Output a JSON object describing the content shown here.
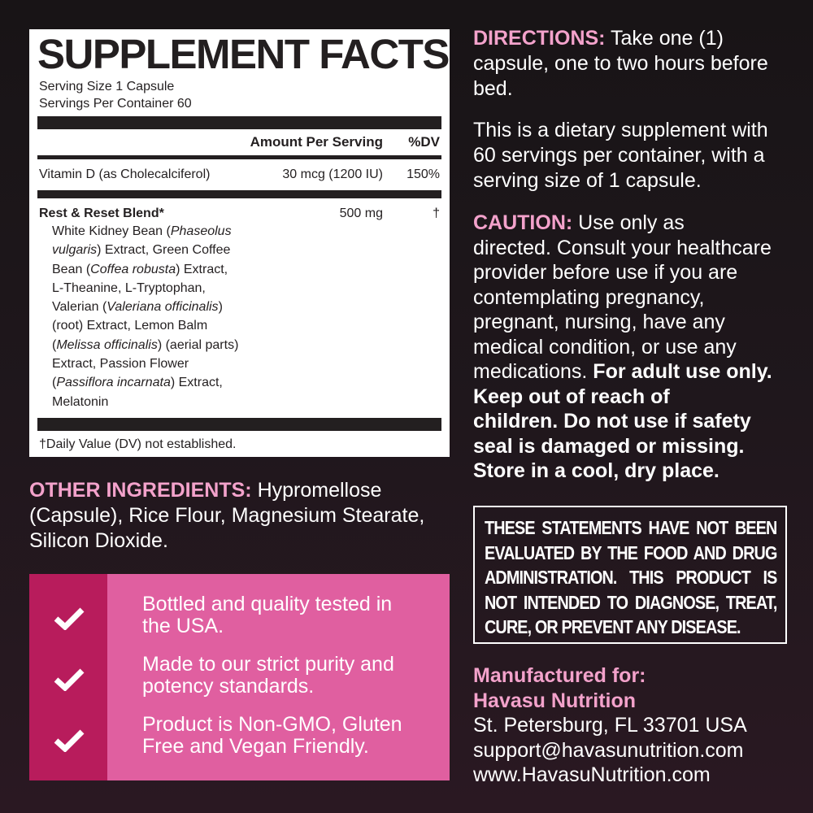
{
  "facts": {
    "title": "SUPPLEMENT FACTS",
    "serving_size": "Serving Size 1 Capsule",
    "servings_per_container": "Servings Per Container 60",
    "header": {
      "amount": "Amount Per Serving",
      "dv": "%DV"
    },
    "vitamin_d": {
      "name": "Vitamin D (as Cholecalciferol)",
      "amount": "30 mcg (1200 IU)",
      "dv": "150%"
    },
    "blend": {
      "name": "Rest & Reset Blend*",
      "amount": "500 mg",
      "dv": "†",
      "lines": [
        [
          {
            "t": "White Kidney Bean ("
          },
          {
            "t": "Phaseolus",
            "i": true
          }
        ],
        [
          {
            "t": "vulgaris",
            "i": true
          },
          {
            "t": ") Extract, Green Coffee"
          }
        ],
        [
          {
            "t": "Bean ("
          },
          {
            "t": "Coffea robusta",
            "i": true
          },
          {
            "t": ") Extract,"
          }
        ],
        [
          {
            "t": "L-Theanine, L-Tryptophan,"
          }
        ],
        [
          {
            "t": "Valerian  ("
          },
          {
            "t": "Valeriana officinalis",
            "i": true
          },
          {
            "t": ")"
          }
        ],
        [
          {
            "t": "(root) Extract, Lemon  Balm"
          }
        ],
        [
          {
            "t": "("
          },
          {
            "t": "Melissa officinalis",
            "i": true
          },
          {
            "t": ") (aerial parts)"
          }
        ],
        [
          {
            "t": "Extract, Passion Flower"
          }
        ],
        [
          {
            "t": "("
          },
          {
            "t": "Passiflora incarnata",
            "i": true
          },
          {
            "t": ") Extract,"
          }
        ],
        [
          {
            "t": "Melatonin"
          }
        ]
      ]
    },
    "footnote": "†Daily Value (DV) not established."
  },
  "other_ingredients": {
    "label": "OTHER INGREDIENTS:",
    "lines": [
      " Hypromellose",
      "(Capsule), Rice Flour, Magnesium Stearate,",
      "Silicon Dioxide."
    ]
  },
  "features": {
    "icon": "checkmark-icon",
    "items": [
      [
        "Bottled and quality tested in",
        "the USA."
      ],
      [
        "Made to our strict purity and",
        "potency standards."
      ],
      [
        "Product is Non-GMO, Gluten",
        "Free and Vegan Friendly."
      ]
    ]
  },
  "directions": {
    "label": "DIRECTIONS:",
    "lines": [
      " Take one (1)",
      "capsule, one to two hours before",
      "bed."
    ]
  },
  "dietary": {
    "lines": [
      "This is a dietary supplement with",
      "60 servings per container, with a",
      "serving size of 1 capsule."
    ]
  },
  "caution": {
    "lines": [
      [
        {
          "t": "CAUTION:",
          "p": true
        },
        {
          "t": " Use only as"
        }
      ],
      [
        {
          "t": "directed. Consult your healthcare"
        }
      ],
      [
        {
          "t": "provider before use if you are"
        }
      ],
      [
        {
          "t": "contemplating pregnancy,"
        }
      ],
      [
        {
          "t": "pregnant, nursing, have any"
        }
      ],
      [
        {
          "t": "medical condition, or use any"
        }
      ],
      [
        {
          "t": "medications. "
        },
        {
          "t": "For adult use only.",
          "b": true
        }
      ],
      [
        {
          "t": "Keep out of reach of",
          "b": true
        }
      ],
      [
        {
          "t": "children. Do not use if safety",
          "b": true
        }
      ],
      [
        {
          "t": "seal is damaged or missing.",
          "b": true
        }
      ],
      [
        {
          "t": "Store in a cool, dry place.",
          "b": true
        }
      ]
    ]
  },
  "disclaimer": {
    "lines": [
      "THESE STATEMENTS HAVE NOT BEEN",
      "EVALUATED BY THE FOOD AND DRUG",
      "ADMINISTRATION. THIS PRODUCT IS",
      "NOT INTENDED TO DIAGNOSE, TREAT,",
      "CURE, OR PREVENT ANY DISEASE."
    ]
  },
  "manufacturer": {
    "label": "Manufactured for:",
    "name": "Havasu Nutrition",
    "address": "St. Petersburg, FL 33701 USA",
    "email": "support@havasunutrition.com",
    "website": "www.HavasuNutrition.com"
  },
  "colors": {
    "accent_pink": "#f3a2cb",
    "feature_bg": "#e05fa0",
    "feature_dark": "#b81c5c",
    "background": "#1f171c"
  }
}
